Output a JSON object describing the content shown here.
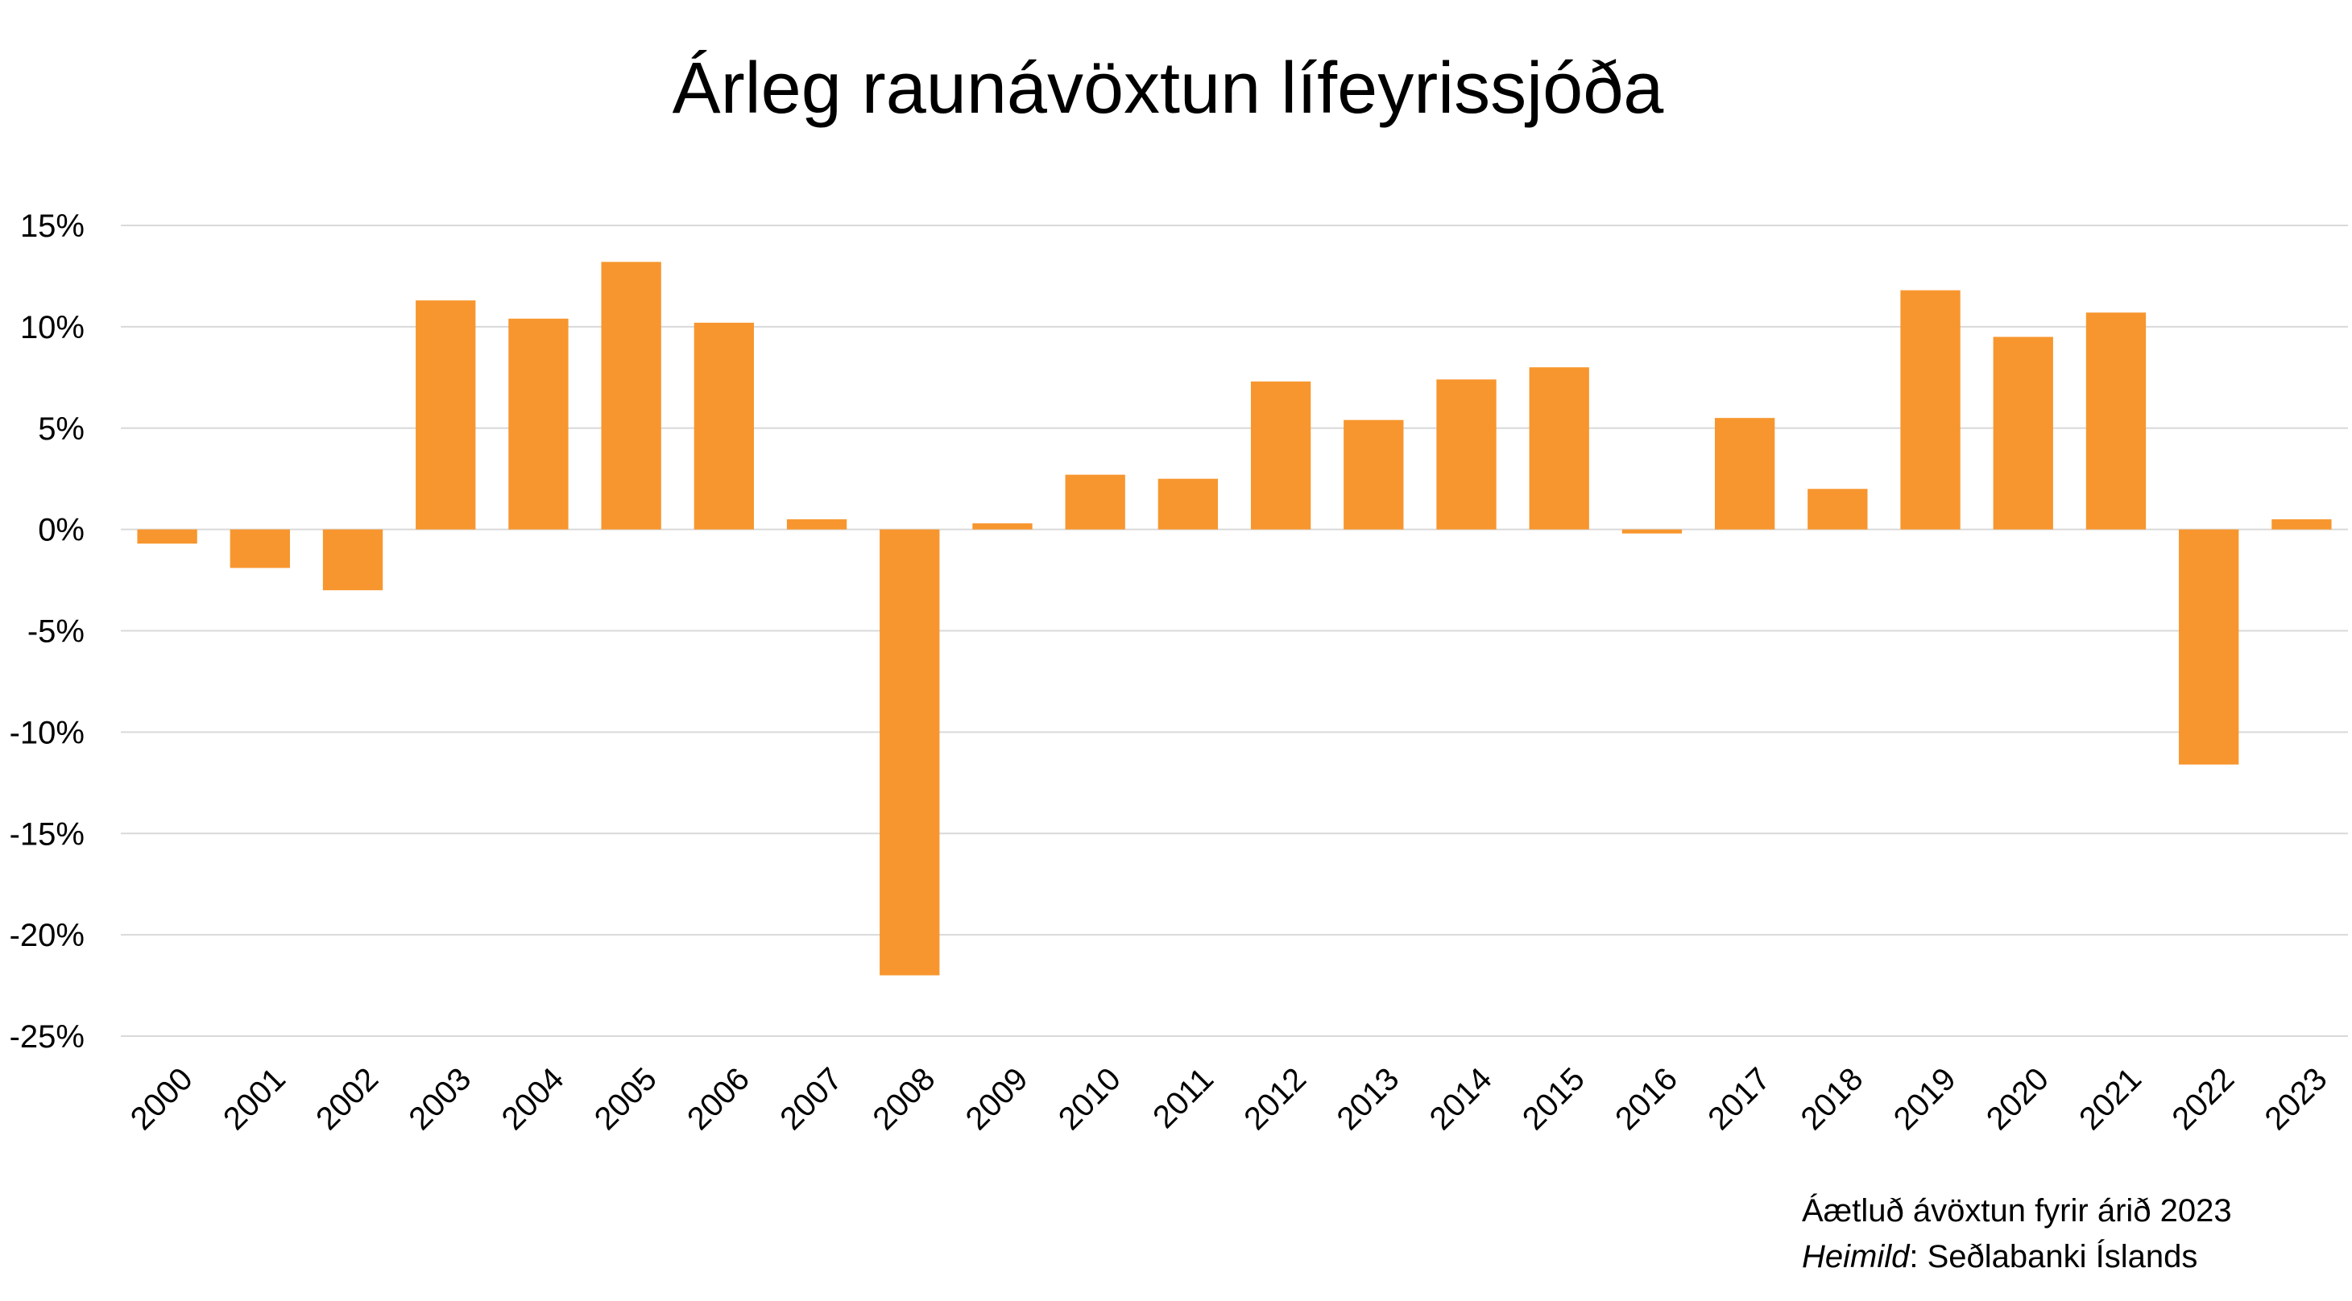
{
  "chart_data": {
    "type": "bar",
    "title": "Árleg raunávöxtun lífeyrissjóða",
    "xlabel": "",
    "ylabel": "",
    "categories": [
      "2000",
      "2001",
      "2002",
      "2003",
      "2004",
      "2005",
      "2006",
      "2007",
      "2008",
      "2009",
      "2010",
      "2011",
      "2012",
      "2013",
      "2014",
      "2015",
      "2016",
      "2017",
      "2018",
      "2019",
      "2020",
      "2021",
      "2022",
      "2023"
    ],
    "series": [
      {
        "values": [
          -0.7,
          -1.9,
          -3.0,
          11.3,
          10.4,
          13.2,
          10.2,
          0.5,
          -22.0,
          0.3,
          2.7,
          2.5,
          7.3,
          5.4,
          7.4,
          8.0,
          -0.2,
          5.5,
          2.0,
          11.8,
          9.5,
          10.7,
          -11.6,
          0.5
        ],
        "color": "#F7962E"
      }
    ],
    "ylim": [
      -25,
      15
    ],
    "yticks": [
      15,
      10,
      5,
      0,
      -5,
      -10,
      -15,
      -20,
      -25
    ],
    "ytick_labels": [
      "15%",
      "10%",
      "5%",
      "0%",
      "-5%",
      "-10%",
      "-15%",
      "-20%",
      "-25%"
    ],
    "grid": true,
    "grid_color": "#D9D9D9",
    "legend": "none"
  },
  "footnote": {
    "estimate_text": "Áætluð ávöxtun fyrir árið 2023",
    "source_label": "Heimild",
    "source_separator": ": ",
    "source_value": "Seðlabanki Íslands"
  }
}
